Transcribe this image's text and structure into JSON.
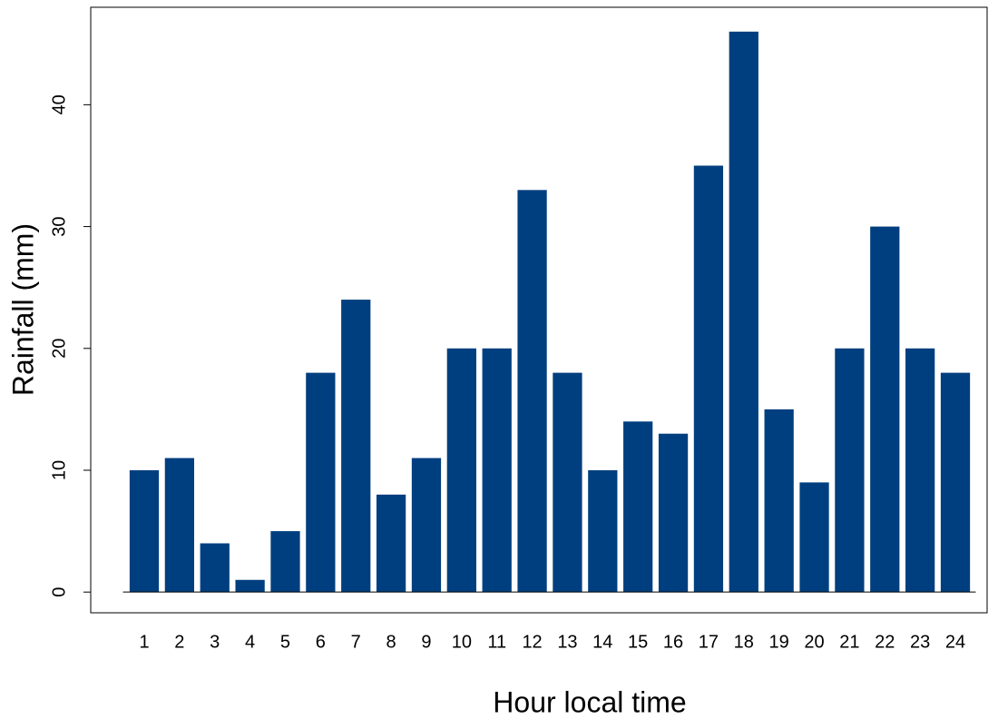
{
  "chart_data": {
    "type": "bar",
    "x_label": "Hour local time",
    "y_label": "Rainfall (mm)",
    "categories": [
      "1",
      "2",
      "3",
      "4",
      "5",
      "6",
      "7",
      "8",
      "9",
      "10",
      "11",
      "12",
      "13",
      "14",
      "15",
      "16",
      "17",
      "18",
      "19",
      "20",
      "21",
      "22",
      "23",
      "24"
    ],
    "values": [
      10,
      11,
      4,
      1,
      5,
      18,
      24,
      8,
      11,
      20,
      20,
      33,
      18,
      10,
      14,
      13,
      35,
      46,
      15,
      9,
      20,
      30,
      20,
      18
    ],
    "color": "#003f7f",
    "ylim": [
      -1.7,
      48
    ],
    "yticks": [
      0,
      10,
      20,
      30,
      40
    ]
  }
}
